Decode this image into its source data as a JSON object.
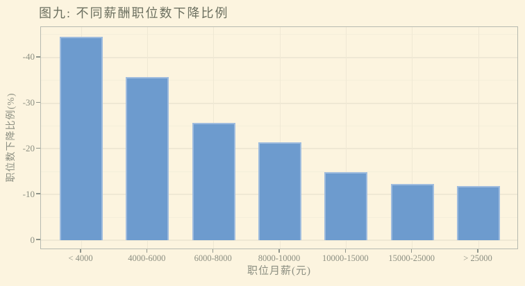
{
  "chart_data": {
    "type": "bar",
    "title": "图九: 不同薪酬职位数下降比例",
    "xlabel": "职位月薪(元)",
    "ylabel": "职位数下降比例(%)",
    "categories": [
      "< 4000",
      "4000-6000",
      "6000-8000",
      "8000-10000",
      "10000-15000",
      "15000-25000",
      "> 25000"
    ],
    "values": [
      -44.6,
      -35.7,
      -25.7,
      -21.4,
      -14.9,
      -12.3,
      -11.9
    ],
    "yticks": [
      0,
      -10,
      -20,
      -30,
      -40
    ],
    "yticks_minor": [
      -5,
      -15,
      -25,
      -35,
      -45
    ],
    "ylim": [
      2.1,
      -46.8
    ],
    "grid": {
      "horizontal_major": true,
      "horizontal_minor": true,
      "vertical_at_category_centers": true
    },
    "legend": "none",
    "colors": {
      "background": "#fcf4df",
      "bar_fill": "#6d9bce",
      "bar_border": "#9fbcde",
      "frame": "#b6bab0",
      "grid_major": "#efe8d4",
      "grid_minor": "#f4eeda",
      "tick_mark": "#8f948a",
      "tick_label": "#8c8f82",
      "axis_title": "#8c8f82",
      "chart_title": "#6c7060"
    }
  }
}
